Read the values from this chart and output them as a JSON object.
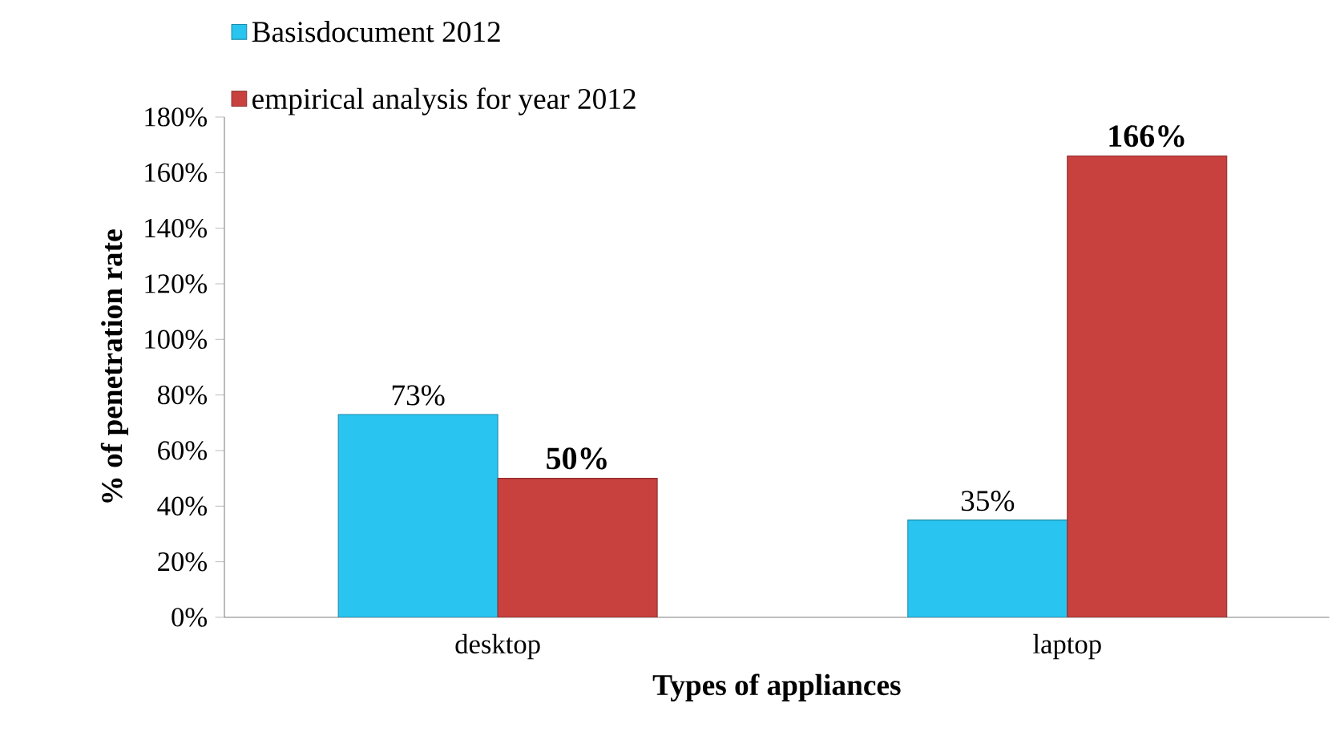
{
  "chart_data": {
    "type": "bar",
    "xlabel": "Types of appliances",
    "ylabel": "% of penetration rate",
    "categories": [
      "desktop",
      "laptop"
    ],
    "series": [
      {
        "name": "Basisdocument 2012",
        "color": "#29c5f0",
        "values": [
          73,
          35
        ],
        "value_labels": [
          "73%",
          "35%"
        ]
      },
      {
        "name": "empirical analysis for year 2012",
        "color": "#c9413f",
        "values": [
          50,
          166
        ],
        "value_labels": [
          "50%",
          "166%"
        ]
      }
    ],
    "ylim": [
      0,
      180
    ],
    "yticks": [
      {
        "value": 0,
        "label": "0%"
      },
      {
        "value": 20,
        "label": "20%"
      },
      {
        "value": 40,
        "label": "40%"
      },
      {
        "value": 60,
        "label": "60%"
      },
      {
        "value": 80,
        "label": "80%"
      },
      {
        "value": 100,
        "label": "100%"
      },
      {
        "value": 120,
        "label": "120%"
      },
      {
        "value": 140,
        "label": "140%"
      },
      {
        "value": 160,
        "label": "160%"
      },
      {
        "value": 180,
        "label": "180%"
      }
    ],
    "grid": false,
    "legend": "top left"
  }
}
